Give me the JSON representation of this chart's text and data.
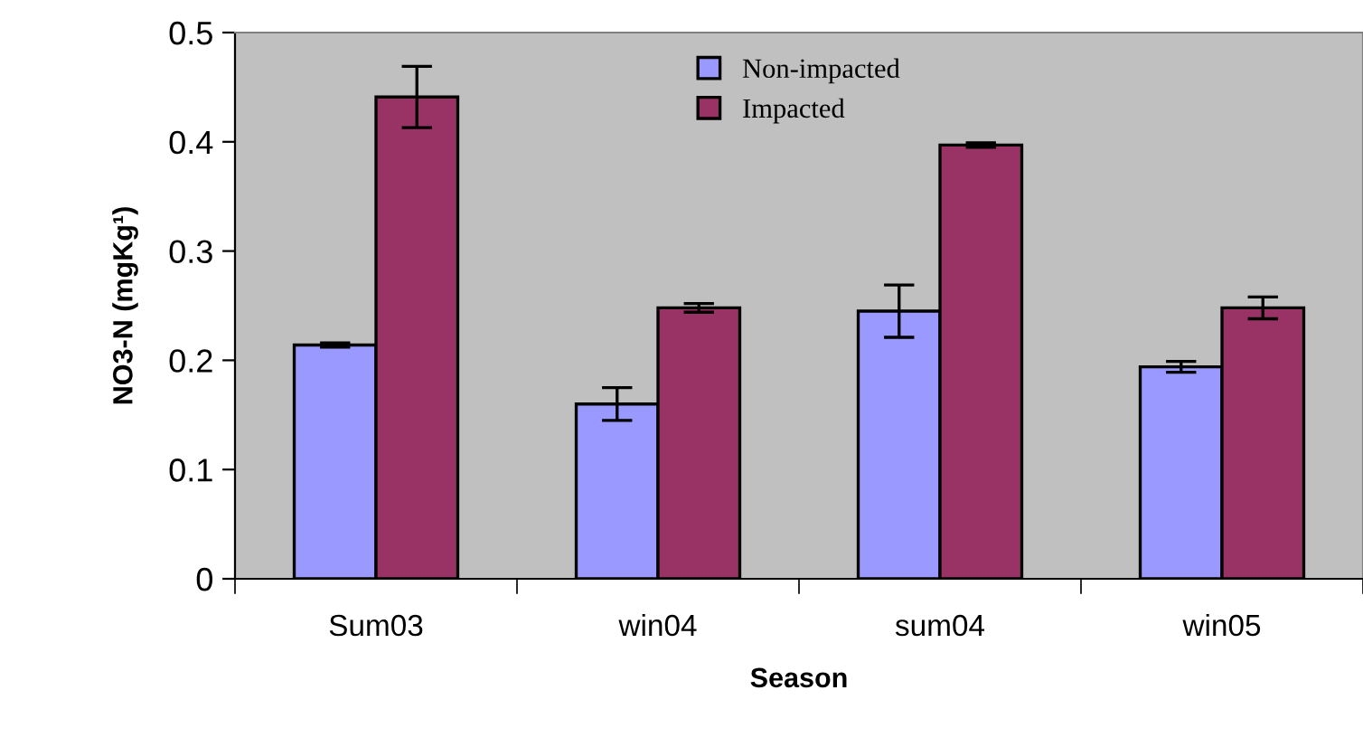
{
  "chart_data": {
    "type": "bar",
    "xlabel": "Season",
    "ylabel": "NO3-N (mgKg¹)",
    "categories": [
      "Sum03",
      "win04",
      "sum04",
      "win05"
    ],
    "series": [
      {
        "name": "Non-impacted",
        "color": "#9999ff",
        "values": [
          0.214,
          0.16,
          0.245,
          0.194
        ],
        "errors": [
          0.002,
          0.015,
          0.024,
          0.005
        ]
      },
      {
        "name": "Impacted",
        "color": "#993366",
        "values": [
          0.441,
          0.248,
          0.397,
          0.248
        ],
        "errors": [
          0.028,
          0.004,
          0.002,
          0.01
        ]
      }
    ],
    "ylim": [
      0,
      0.5
    ],
    "yticks": [
      0,
      0.1,
      0.2,
      0.3,
      0.4,
      0.5
    ],
    "grid": false,
    "legend": "top"
  }
}
